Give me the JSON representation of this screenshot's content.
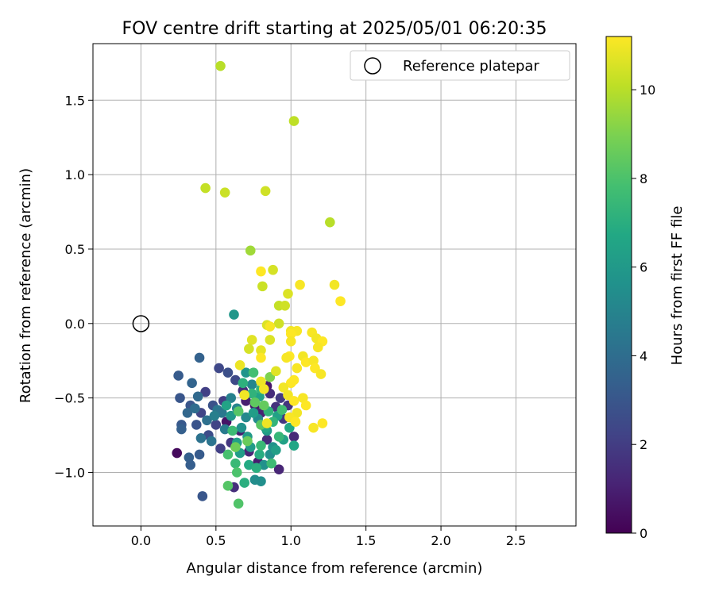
{
  "chart_data": {
    "type": "scatter",
    "title": "FOV centre drift starting at 2025/05/01 06:20:35",
    "xlabel": "Angular distance from reference (arcmin)",
    "ylabel": "Rotation from reference (arcmin)",
    "xlim": [
      -0.32,
      2.9
    ],
    "ylim": [
      -1.36,
      1.88
    ],
    "x_ticks": [
      "0.0",
      "0.5",
      "1.0",
      "1.5",
      "2.0",
      "2.5"
    ],
    "y_ticks": [
      "1.5",
      "1.0",
      "0.5",
      "0.0",
      "−0.5",
      "−1.0"
    ],
    "grid": true,
    "legend": {
      "position": "top-right",
      "entries": [
        "Reference platepar"
      ]
    },
    "reference_point": {
      "x": 0.0,
      "y": 0.0,
      "label": "Reference platepar"
    },
    "colorbar": {
      "label": "Hours from first FF file",
      "range": [
        0,
        11.2
      ],
      "ticks": [
        "0",
        "2",
        "4",
        "6",
        "8",
        "10"
      ],
      "colormap": "viridis"
    },
    "points": [
      {
        "x": 0.24,
        "y": -0.87,
        "h": 0.3
      },
      {
        "x": 0.62,
        "y": -1.1,
        "h": 1.5
      },
      {
        "x": 0.92,
        "y": -0.98,
        "h": 1.2
      },
      {
        "x": 0.57,
        "y": -0.66,
        "h": 0.6
      },
      {
        "x": 0.66,
        "y": -0.72,
        "h": 0.9
      },
      {
        "x": 0.7,
        "y": -0.52,
        "h": 1.0
      },
      {
        "x": 0.76,
        "y": -0.55,
        "h": 0.8
      },
      {
        "x": 0.8,
        "y": -0.6,
        "h": 1.1
      },
      {
        "x": 0.86,
        "y": -0.47,
        "h": 1.4
      },
      {
        "x": 0.84,
        "y": -0.42,
        "h": 0.7
      },
      {
        "x": 0.9,
        "y": -0.56,
        "h": 1.6
      },
      {
        "x": 0.95,
        "y": -0.64,
        "h": 1.8
      },
      {
        "x": 1.02,
        "y": -0.76,
        "h": 1.3
      },
      {
        "x": 0.98,
        "y": -0.55,
        "h": 1.7
      },
      {
        "x": 0.93,
        "y": -0.5,
        "h": 1.9
      },
      {
        "x": 0.72,
        "y": -0.86,
        "h": 1.2
      },
      {
        "x": 0.78,
        "y": -0.93,
        "h": 0.9
      },
      {
        "x": 0.68,
        "y": -0.45,
        "h": 1.5
      },
      {
        "x": 0.55,
        "y": -0.52,
        "h": 2.0
      },
      {
        "x": 0.6,
        "y": -0.8,
        "h": 1.8
      },
      {
        "x": 0.84,
        "y": -0.78,
        "h": 1.4
      },
      {
        "x": 0.52,
        "y": -0.3,
        "h": 2.4
      },
      {
        "x": 0.43,
        "y": -0.46,
        "h": 2.1
      },
      {
        "x": 0.4,
        "y": -0.6,
        "h": 2.3
      },
      {
        "x": 0.45,
        "y": -0.75,
        "h": 2.6
      },
      {
        "x": 0.5,
        "y": -0.68,
        "h": 2.2
      },
      {
        "x": 0.58,
        "y": -0.33,
        "h": 2.7
      },
      {
        "x": 0.63,
        "y": -0.38,
        "h": 2.5
      },
      {
        "x": 0.48,
        "y": -0.55,
        "h": 2.8
      },
      {
        "x": 0.53,
        "y": -0.84,
        "h": 2.1
      },
      {
        "x": 0.37,
        "y": -0.68,
        "h": 2.9
      },
      {
        "x": 0.33,
        "y": -0.55,
        "h": 3.0
      },
      {
        "x": 0.27,
        "y": -0.68,
        "h": 3.1
      },
      {
        "x": 0.41,
        "y": -1.16,
        "h": 3.0
      },
      {
        "x": 0.39,
        "y": -0.88,
        "h": 3.2
      },
      {
        "x": 0.32,
        "y": -0.9,
        "h": 3.4
      },
      {
        "x": 0.33,
        "y": -0.95,
        "h": 3.3
      },
      {
        "x": 0.39,
        "y": -0.23,
        "h": 3.5
      },
      {
        "x": 0.34,
        "y": -0.4,
        "h": 3.6
      },
      {
        "x": 0.25,
        "y": -0.35,
        "h": 3.2
      },
      {
        "x": 0.26,
        "y": -0.5,
        "h": 3.0
      },
      {
        "x": 0.38,
        "y": -0.49,
        "h": 3.8
      },
      {
        "x": 0.31,
        "y": -0.6,
        "h": 3.7
      },
      {
        "x": 0.27,
        "y": -0.71,
        "h": 3.4
      },
      {
        "x": 0.36,
        "y": -0.57,
        "h": 4.0
      },
      {
        "x": 0.44,
        "y": -0.65,
        "h": 4.1
      },
      {
        "x": 0.47,
        "y": -0.79,
        "h": 4.3
      },
      {
        "x": 0.4,
        "y": -0.77,
        "h": 4.2
      },
      {
        "x": 0.54,
        "y": -0.6,
        "h": 4.5
      },
      {
        "x": 0.51,
        "y": -0.58,
        "h": 4.4
      },
      {
        "x": 0.49,
        "y": -0.62,
        "h": 4.8
      },
      {
        "x": 0.56,
        "y": -0.71,
        "h": 4.6
      },
      {
        "x": 0.6,
        "y": -0.5,
        "h": 4.9
      },
      {
        "x": 0.64,
        "y": -0.57,
        "h": 5.0
      },
      {
        "x": 0.7,
        "y": -0.63,
        "h": 5.2
      },
      {
        "x": 0.74,
        "y": -0.41,
        "h": 5.1
      },
      {
        "x": 0.78,
        "y": -0.64,
        "h": 5.3
      },
      {
        "x": 0.8,
        "y": -1.06,
        "h": 5.5
      },
      {
        "x": 0.76,
        "y": -1.05,
        "h": 5.4
      },
      {
        "x": 0.82,
        "y": -0.95,
        "h": 5.6
      },
      {
        "x": 0.86,
        "y": -0.88,
        "h": 5.5
      },
      {
        "x": 0.88,
        "y": -0.83,
        "h": 5.7
      },
      {
        "x": 0.7,
        "y": -0.33,
        "h": 5.8
      },
      {
        "x": 0.67,
        "y": -0.7,
        "h": 5.6
      },
      {
        "x": 0.62,
        "y": 0.06,
        "h": 5.9
      },
      {
        "x": 0.71,
        "y": -0.76,
        "h": 6.0
      },
      {
        "x": 0.73,
        "y": -0.83,
        "h": 6.1
      },
      {
        "x": 0.66,
        "y": -0.87,
        "h": 6.2
      },
      {
        "x": 0.84,
        "y": -0.72,
        "h": 6.1
      },
      {
        "x": 0.9,
        "y": -0.85,
        "h": 6.3
      },
      {
        "x": 0.95,
        "y": -0.78,
        "h": 6.4
      },
      {
        "x": 0.6,
        "y": -0.62,
        "h": 6.0
      },
      {
        "x": 0.64,
        "y": -0.8,
        "h": 6.3
      },
      {
        "x": 0.75,
        "y": -0.6,
        "h": 6.2
      },
      {
        "x": 0.79,
        "y": -0.49,
        "h": 6.5
      },
      {
        "x": 0.83,
        "y": -0.7,
        "h": 6.6
      },
      {
        "x": 0.91,
        "y": -0.62,
        "h": 6.4
      },
      {
        "x": 0.99,
        "y": -0.7,
        "h": 6.7
      },
      {
        "x": 1.02,
        "y": -0.82,
        "h": 6.6
      },
      {
        "x": 0.57,
        "y": -0.55,
        "h": 6.5
      },
      {
        "x": 0.72,
        "y": -0.95,
        "h": 6.8
      },
      {
        "x": 0.79,
        "y": -0.88,
        "h": 6.9
      },
      {
        "x": 0.69,
        "y": -1.07,
        "h": 7.0
      },
      {
        "x": 0.77,
        "y": -0.97,
        "h": 7.0
      },
      {
        "x": 0.68,
        "y": -0.4,
        "h": 7.1
      },
      {
        "x": 0.74,
        "y": -0.47,
        "h": 7.2
      },
      {
        "x": 0.8,
        "y": -0.44,
        "h": 7.3
      },
      {
        "x": 0.85,
        "y": -0.59,
        "h": 7.2
      },
      {
        "x": 0.92,
        "y": -0.76,
        "h": 7.4
      },
      {
        "x": 0.88,
        "y": -0.66,
        "h": 7.3
      },
      {
        "x": 0.63,
        "y": -0.94,
        "h": 7.5
      },
      {
        "x": 0.61,
        "y": -0.72,
        "h": 7.6
      },
      {
        "x": 0.8,
        "y": -0.82,
        "h": 7.5
      },
      {
        "x": 0.94,
        "y": -0.58,
        "h": 7.7
      },
      {
        "x": 0.75,
        "y": -0.33,
        "h": 7.8
      },
      {
        "x": 0.87,
        "y": -0.94,
        "h": 7.6
      },
      {
        "x": 0.58,
        "y": -0.88,
        "h": 7.9
      },
      {
        "x": 0.64,
        "y": -1.0,
        "h": 8.0
      },
      {
        "x": 0.58,
        "y": -1.09,
        "h": 8.2
      },
      {
        "x": 0.65,
        "y": -1.21,
        "h": 8.1
      },
      {
        "x": 0.8,
        "y": -0.68,
        "h": 8.3
      },
      {
        "x": 0.76,
        "y": -0.53,
        "h": 8.4
      },
      {
        "x": 0.82,
        "y": -0.55,
        "h": 8.5
      },
      {
        "x": 0.65,
        "y": -0.59,
        "h": 8.2
      },
      {
        "x": 0.71,
        "y": -0.79,
        "h": 8.6
      },
      {
        "x": 0.63,
        "y": -0.83,
        "h": 8.7
      },
      {
        "x": 0.86,
        "y": -0.36,
        "h": 9.0
      },
      {
        "x": 0.73,
        "y": 0.49,
        "h": 9.6
      },
      {
        "x": 0.43,
        "y": 0.91,
        "h": 10.2
      },
      {
        "x": 0.56,
        "y": 0.88,
        "h": 10.3
      },
      {
        "x": 0.53,
        "y": 1.73,
        "h": 10.0
      },
      {
        "x": 1.02,
        "y": 1.36,
        "h": 10.1
      },
      {
        "x": 0.83,
        "y": 0.89,
        "h": 10.4
      },
      {
        "x": 1.26,
        "y": 0.68,
        "h": 10.0
      },
      {
        "x": 0.88,
        "y": 0.36,
        "h": 10.5
      },
      {
        "x": 0.81,
        "y": 0.25,
        "h": 10.3
      },
      {
        "x": 0.92,
        "y": 0.12,
        "h": 10.2
      },
      {
        "x": 0.98,
        "y": 0.2,
        "h": 10.6
      },
      {
        "x": 0.96,
        "y": 0.12,
        "h": 10.4
      },
      {
        "x": 0.92,
        "y": 0.0,
        "h": 10.4
      },
      {
        "x": 0.84,
        "y": -0.01,
        "h": 10.6
      },
      {
        "x": 0.74,
        "y": -0.11,
        "h": 10.7
      },
      {
        "x": 0.72,
        "y": -0.17,
        "h": 10.5
      },
      {
        "x": 0.8,
        "y": -0.18,
        "h": 10.8
      },
      {
        "x": 0.86,
        "y": -0.11,
        "h": 10.6
      },
      {
        "x": 0.9,
        "y": -0.32,
        "h": 10.7
      },
      {
        "x": 0.66,
        "y": -0.28,
        "h": 10.9
      },
      {
        "x": 0.8,
        "y": -0.39,
        "h": 10.9
      },
      {
        "x": 0.69,
        "y": -0.48,
        "h": 11.0
      },
      {
        "x": 0.82,
        "y": -0.44,
        "h": 11.0
      },
      {
        "x": 0.86,
        "y": -0.02,
        "h": 11.1
      },
      {
        "x": 1.0,
        "y": -0.05,
        "h": 11.0
      },
      {
        "x": 1.04,
        "y": -0.05,
        "h": 11.1
      },
      {
        "x": 0.8,
        "y": 0.35,
        "h": 11.2
      },
      {
        "x": 1.06,
        "y": 0.26,
        "h": 11.1
      },
      {
        "x": 1.29,
        "y": 0.26,
        "h": 11.0
      },
      {
        "x": 1.33,
        "y": 0.15,
        "h": 11.2
      },
      {
        "x": 1.14,
        "y": -0.06,
        "h": 11.1
      },
      {
        "x": 1.17,
        "y": -0.1,
        "h": 11.0
      },
      {
        "x": 1.21,
        "y": -0.12,
        "h": 11.2
      },
      {
        "x": 1.18,
        "y": -0.16,
        "h": 11.1
      },
      {
        "x": 1.08,
        "y": -0.22,
        "h": 11.0
      },
      {
        "x": 0.99,
        "y": -0.22,
        "h": 11.2
      },
      {
        "x": 0.97,
        "y": -0.23,
        "h": 11.1
      },
      {
        "x": 1.02,
        "y": -0.38,
        "h": 11.2
      },
      {
        "x": 1.04,
        "y": -0.3,
        "h": 11.1
      },
      {
        "x": 1.1,
        "y": -0.26,
        "h": 11.2
      },
      {
        "x": 1.15,
        "y": -0.25,
        "h": 11.1
      },
      {
        "x": 1.16,
        "y": -0.3,
        "h": 11.2
      },
      {
        "x": 1.2,
        "y": -0.34,
        "h": 11.1
      },
      {
        "x": 1.0,
        "y": -0.4,
        "h": 11.2
      },
      {
        "x": 0.98,
        "y": -0.48,
        "h": 11.0
      },
      {
        "x": 1.02,
        "y": -0.52,
        "h": 11.2
      },
      {
        "x": 1.08,
        "y": -0.5,
        "h": 11.1
      },
      {
        "x": 1.1,
        "y": -0.55,
        "h": 11.2
      },
      {
        "x": 1.04,
        "y": -0.6,
        "h": 11.0
      },
      {
        "x": 0.99,
        "y": -0.63,
        "h": 11.1
      },
      {
        "x": 1.03,
        "y": -0.66,
        "h": 11.2
      },
      {
        "x": 1.15,
        "y": -0.7,
        "h": 11.1
      },
      {
        "x": 1.21,
        "y": -0.67,
        "h": 11.2
      },
      {
        "x": 0.95,
        "y": -0.43,
        "h": 11.0
      },
      {
        "x": 1.0,
        "y": -0.07,
        "h": 11.2
      },
      {
        "x": 1.0,
        "y": -0.12,
        "h": 11.1
      },
      {
        "x": 0.84,
        "y": -0.67,
        "h": 10.9
      },
      {
        "x": 0.8,
        "y": -0.23,
        "h": 11.2
      }
    ]
  }
}
